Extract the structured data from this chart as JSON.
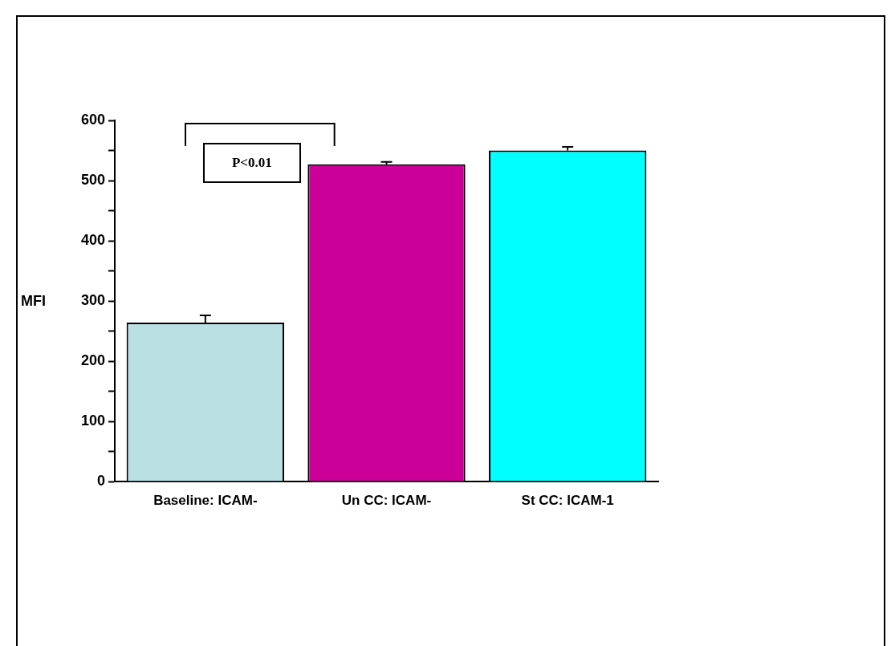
{
  "chart_data": {
    "type": "bar",
    "categories": [
      "Baseline: ICAM-",
      "Un CC: ICAM-",
      "St CC: ICAM-1"
    ],
    "values": [
      264,
      527,
      550
    ],
    "colors": [
      "#bbe0e3",
      "#cc0099",
      "#00ffff"
    ],
    "errors": [
      12,
      4,
      6
    ],
    "ylabel": "MFI",
    "ylim": [
      0,
      600
    ],
    "yticks": [
      0,
      {
        "value": 50,
        "label": null
      },
      100,
      {
        "value": 150,
        "label": null
      },
      200,
      {
        "value": 250,
        "label": null
      },
      300,
      {
        "value": 350,
        "label": null
      },
      400,
      {
        "value": 450,
        "label": null
      },
      500,
      {
        "value": 550,
        "label": null
      },
      600
    ],
    "annotations": [
      "P<0.01"
    ],
    "grid": false,
    "legend": false
  }
}
